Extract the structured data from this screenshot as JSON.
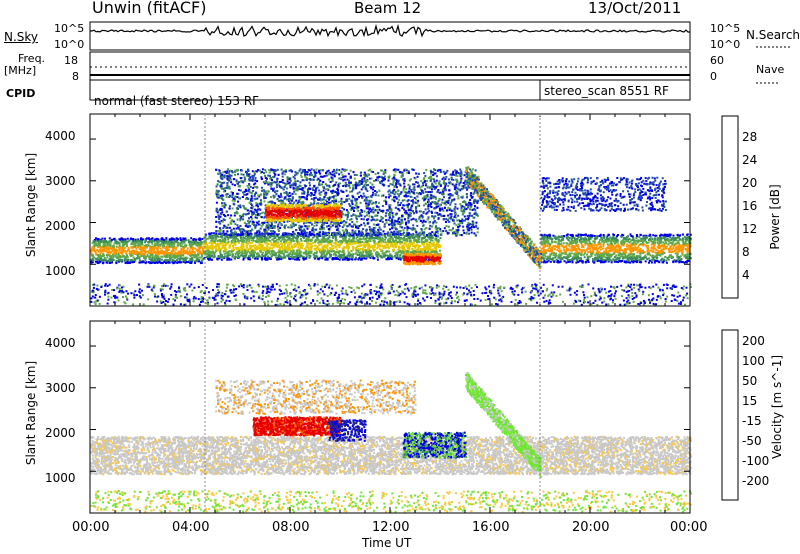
{
  "header": {
    "title": "Unwin (fitACF)",
    "beam": "Beam 12",
    "date": "13/Oct/2011"
  },
  "side_labels": {
    "nsky": "N.Sky",
    "freq": "Freq.",
    "mhz": "[MHz]",
    "cpid": "CPID",
    "nsearch": "N.Search",
    "nave": "Nave"
  },
  "cpid_labels": {
    "first": "normal (fast stereo) 153 RF",
    "second": "stereo_scan 8551 RF"
  },
  "noise_panel": {
    "left_ticks": [
      "10^5",
      "10^0"
    ],
    "right_ticks": [
      "10^5",
      "10^0"
    ]
  },
  "freq_panel": {
    "left_ticks": [
      "18",
      "8"
    ],
    "right_ticks": [
      "60",
      "0"
    ]
  },
  "colors": {
    "power": [
      "#0000e6",
      "#1e4fa8",
      "#3c8c5a",
      "#5fa84a",
      "#e6c800",
      "#ff9600",
      "#ff5000",
      "#e60000"
    ],
    "velocity": [
      "#e60000",
      "#ff6400",
      "#ff9600",
      "#ffc83c",
      "#c8c8c8",
      "#6ee632",
      "#3cb43c",
      "#28288c",
      "#0000e6"
    ]
  },
  "chart_data": [
    {
      "type": "heatmap",
      "title": "Power",
      "xlabel": "Time UT",
      "ylabel": "Slant Range [km]",
      "colorbar_label": "Power [dB]",
      "x_ticks": [
        "00:00",
        "04:00",
        "08:00",
        "12:00",
        "16:00",
        "20:00",
        "00:00"
      ],
      "x_range_hours": [
        0,
        24
      ],
      "y_ticks": [
        1000,
        2000,
        3000,
        4000
      ],
      "ylim": [
        0,
        4600
      ],
      "colorbar_ticks": [
        4,
        8,
        12,
        16,
        20,
        24,
        28
      ],
      "colorbar_range": [
        0,
        32
      ],
      "colorbar_colors": [
        "#0000e6",
        "#1e4fa8",
        "#3c8c5a",
        "#5fa84a",
        "#e6c800",
        "#ff9600",
        "#ff5000",
        "#e60000"
      ]
    },
    {
      "type": "heatmap",
      "title": "Velocity",
      "xlabel": "Time UT",
      "ylabel": "Slant Range [km]",
      "colorbar_label": "Velocity [m s^-1]",
      "x_ticks": [
        "00:00",
        "04:00",
        "08:00",
        "12:00",
        "16:00",
        "20:00",
        "00:00"
      ],
      "x_range_hours": [
        0,
        24
      ],
      "y_ticks": [
        1000,
        2000,
        3000,
        4000
      ],
      "ylim": [
        0,
        4600
      ],
      "colorbar_ticks": [
        -200,
        -100,
        -50,
        -15,
        15,
        50,
        100,
        200
      ],
      "colorbar_colors": [
        "#e60000",
        "#ff6400",
        "#ff9600",
        "#ffc83c",
        "#c8c8c8",
        "#6ee632",
        "#3cb43c",
        "#28288c",
        "#0000e6"
      ]
    }
  ]
}
